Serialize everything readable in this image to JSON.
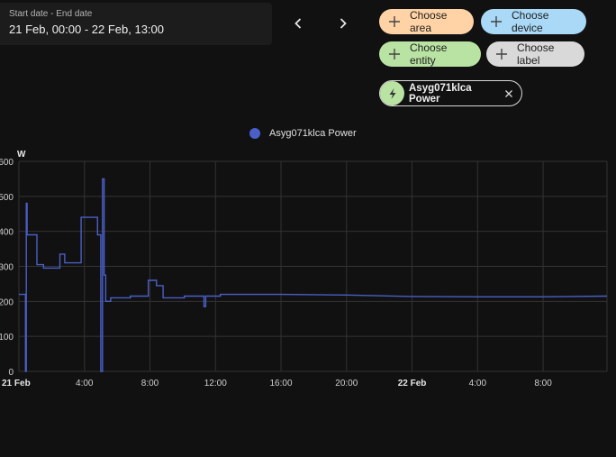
{
  "date_picker": {
    "label": "Start date - End date",
    "value": "21 Feb, 00:00 - 22 Feb, 13:00"
  },
  "nav": {
    "prev_icon": "chevron-left-icon",
    "next_icon": "chevron-right-icon"
  },
  "target_chips": {
    "area": "Choose area",
    "device": "Choose device",
    "entity": "Choose entity",
    "label": "Choose label"
  },
  "selected_entity": {
    "name": "Asyg071klca Power",
    "icon": "lightning-bolt-icon"
  },
  "chart_data": {
    "type": "line",
    "legend": [
      "Asyg071klca Power"
    ],
    "legend_position": "top-center",
    "ylabel": "W",
    "y_ticks": [
      0,
      100,
      200,
      300,
      400,
      500,
      600
    ],
    "y_tick_labels": [
      "0",
      "100",
      "200",
      "300",
      "400",
      "500",
      "600"
    ],
    "ylim": [
      0,
      600
    ],
    "x_ticks": [
      0,
      4,
      8,
      12,
      16,
      20,
      24,
      28,
      32
    ],
    "x_tick_labels": [
      "21 Feb",
      "4:00",
      "8:00",
      "12:00",
      "16:00",
      "20:00",
      "22 Feb",
      "4:00",
      "8:00"
    ],
    "x_tick_bold": [
      true,
      false,
      false,
      false,
      false,
      false,
      true,
      false,
      false
    ],
    "xlim": [
      0,
      35.9
    ],
    "grid": true,
    "series": [
      {
        "name": "Asyg071klca Power",
        "color": "#4a5fc7",
        "x": [
          0,
          0.4,
          0.4,
          0.45,
          0.45,
          0.5,
          0.5,
          0.6,
          0.6,
          1.1,
          1.1,
          1.5,
          1.5,
          2.5,
          2.5,
          2.8,
          2.8,
          3.4,
          3.4,
          3.8,
          3.8,
          4.8,
          4.8,
          5.0,
          5.0,
          5.1,
          5.1,
          5.2,
          5.2,
          5.3,
          5.3,
          5.6,
          5.6,
          6.8,
          6.8,
          7.9,
          7.9,
          8.4,
          8.4,
          8.8,
          8.8,
          10.1,
          10.1,
          11.3,
          11.3,
          11.4,
          11.4,
          12.3,
          12.3,
          16,
          20,
          24,
          28,
          32,
          35.9
        ],
        "values": [
          220,
          220,
          0,
          0,
          480,
          480,
          390,
          390,
          390,
          390,
          305,
          305,
          295,
          295,
          335,
          335,
          310,
          310,
          310,
          310,
          440,
          440,
          390,
          390,
          0,
          0,
          550,
          550,
          275,
          275,
          200,
          200,
          210,
          210,
          215,
          215,
          260,
          260,
          245,
          245,
          210,
          210,
          215,
          215,
          185,
          185,
          215,
          215,
          220,
          220,
          218,
          214,
          213,
          213,
          215
        ]
      }
    ]
  }
}
